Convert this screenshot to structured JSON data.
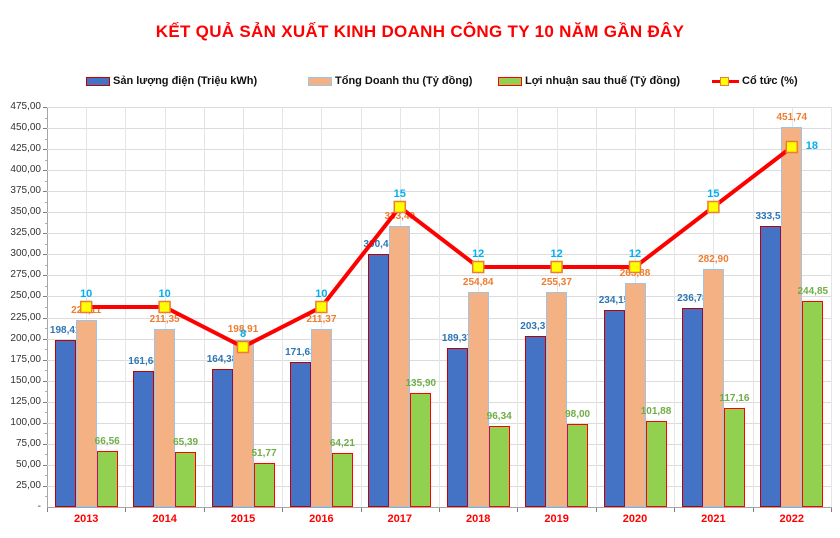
{
  "title": "KẾT QUẢ SẢN XUẤT KINH DOANH CÔNG TY 10 NĂM GẦN ĐÂY",
  "colors": {
    "title": "#FF0000",
    "year_labels": "#FF0000",
    "axis_labels": "#333333",
    "grid": "#DCDCDC"
  },
  "chart_data": {
    "type": "bar",
    "subtype": "grouped bars with overlaid line on hidden secondary axis",
    "title": "KẾT QUẢ SẢN XUẤT KINH DOANH CÔNG TY 10 NĂM GẦN ĐÂY",
    "categories": [
      "2013",
      "2014",
      "2015",
      "2016",
      "2017",
      "2018",
      "2019",
      "2020",
      "2021",
      "2022"
    ],
    "series": [
      {
        "name": "Sản lượng điện (Triệu kWh)",
        "type": "bar",
        "axis": "primary",
        "fill": "#4472C4",
        "border": "#C00000",
        "label_color": "#2E75B6",
        "values": [
          198.41,
          161.64,
          164.38,
          171.63,
          300.41,
          189.37,
          203.37,
          234.15,
          236.78,
          333.53
        ],
        "labels": [
          "198,41",
          "161,64",
          "164,38",
          "171,63",
          "300,41",
          "189,37",
          "203,37",
          "234,15",
          "236,78",
          "333,53"
        ]
      },
      {
        "name": "Tổng Doanh thu (Tỷ đồng)",
        "type": "bar",
        "axis": "primary",
        "fill": "#F4B183",
        "border": "#9DC3E6",
        "label_color": "#ED7D31",
        "values": [
          222.11,
          211.35,
          198.91,
          211.37,
          333.49,
          254.84,
          255.37,
          265.88,
          282.9,
          451.74
        ],
        "labels": [
          "222,11",
          "211,35",
          "198,91",
          "211,37",
          "333,49",
          "254,84",
          "255,37",
          "265,88",
          "282,90",
          "451,74"
        ]
      },
      {
        "name": "Lợi nhuận sau thuế (Tỷ đồng)",
        "type": "bar",
        "axis": "primary",
        "fill": "#92D050",
        "border": "#FF0000",
        "label_color": "#70AD47",
        "values": [
          66.56,
          65.39,
          51.77,
          64.21,
          135.9,
          96.34,
          98.0,
          101.88,
          117.16,
          244.85
        ],
        "labels": [
          "66,56",
          "65,39",
          "51,77",
          "64,21",
          "135,90",
          "96,34",
          "98,00",
          "101,88",
          "117,16",
          "244,85"
        ]
      },
      {
        "name": "Cổ tức (%)",
        "type": "line",
        "axis": "secondary",
        "line_color": "#FF0000",
        "marker_fill": "#FFFF00",
        "marker_border": "#ED7D31",
        "label_color": "#00B0F0",
        "values": [
          10,
          10,
          8,
          10,
          15,
          12,
          12,
          12,
          15,
          18
        ],
        "labels": [
          "10",
          "10",
          "8",
          "10",
          "15",
          "12",
          "12",
          "12",
          "15",
          "18"
        ]
      }
    ],
    "primary_axis": {
      "min": 0,
      "max": 475,
      "step": 25,
      "tick_labels": [
        "-",
        "25,00",
        "50,00",
        "75,00",
        "100,00",
        "125,00",
        "150,00",
        "175,00",
        "200,00",
        "225,00",
        "250,00",
        "275,00",
        "300,00",
        "325,00",
        "350,00",
        "375,00",
        "400,00",
        "425,00",
        "450,00",
        "475,00"
      ]
    },
    "secondary_axis": {
      "min": 0,
      "max": 20,
      "visible": false
    },
    "grid": true,
    "legend_position": "top"
  }
}
